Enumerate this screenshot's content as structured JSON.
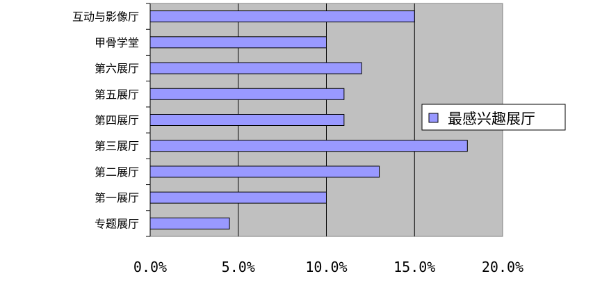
{
  "chart_data": {
    "type": "bar",
    "orientation": "horizontal",
    "categories": [
      "互动与影像厅",
      "甲骨学堂",
      "第六展厅",
      "第五展厅",
      "第四展厅",
      "第三展厅",
      "第二展厅",
      "第一展厅",
      "专题展厅"
    ],
    "series": [
      {
        "name": "最感兴趣展厅",
        "values": [
          15.0,
          10.0,
          12.0,
          11.0,
          11.0,
          18.0,
          13.0,
          10.0,
          4.5
        ],
        "color": "#9999ff"
      }
    ],
    "x_ticks": [
      "0.0%",
      "5.0%",
      "10.0%",
      "15.0%",
      "20.0%"
    ],
    "xlim": [
      0,
      20
    ],
    "grid": true,
    "plot_background": "#c0c0c0",
    "legend_position": "right"
  }
}
